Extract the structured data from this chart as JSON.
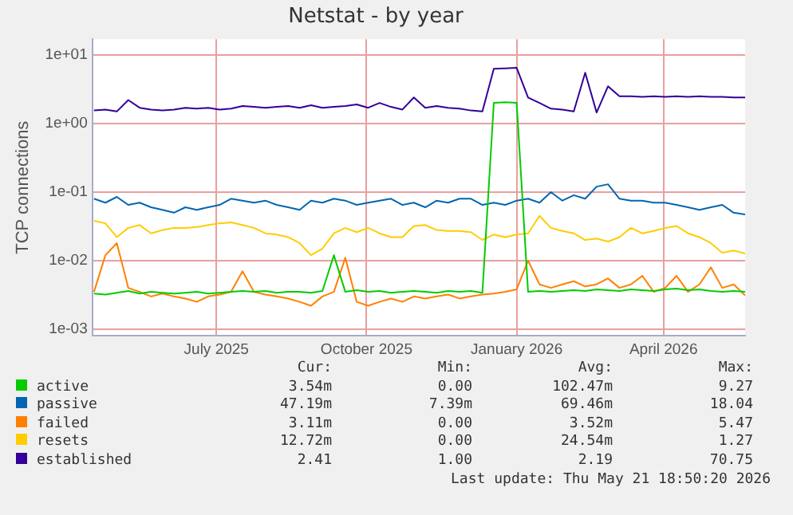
{
  "chart_data": {
    "type": "line",
    "title": "Netstat - by year",
    "ylabel": "TCP connections",
    "log": true,
    "grid": true,
    "legend": "bottom",
    "marker": "none",
    "line_style": "solid",
    "ylim": [
      0.0008,
      17
    ],
    "yticks": [
      {
        "value": 0.001,
        "label": "1e-03"
      },
      {
        "value": 0.01,
        "label": "1e-02"
      },
      {
        "value": 0.1,
        "label": "1e-01"
      },
      {
        "value": 1,
        "label": "1e+00"
      },
      {
        "value": 10,
        "label": "1e+01"
      }
    ],
    "xlim": [
      "2025-04-16",
      "2026-05-21"
    ],
    "xticks": [
      {
        "value": "2025-07-01",
        "label": "July 2025"
      },
      {
        "value": "2025-10-01",
        "label": "October 2025"
      },
      {
        "value": "2026-01-01",
        "label": "January 2026"
      },
      {
        "value": "2026-04-01",
        "label": "April 2026"
      }
    ],
    "x": [
      "2025-04-17",
      "2025-04-24",
      "2025-05-01",
      "2025-05-08",
      "2025-05-15",
      "2025-05-22",
      "2025-05-29",
      "2025-06-05",
      "2025-06-12",
      "2025-06-19",
      "2025-06-26",
      "2025-07-03",
      "2025-07-10",
      "2025-07-17",
      "2025-07-24",
      "2025-07-31",
      "2025-08-07",
      "2025-08-14",
      "2025-08-21",
      "2025-08-28",
      "2025-09-04",
      "2025-09-11",
      "2025-09-18",
      "2025-09-25",
      "2025-10-02",
      "2025-10-09",
      "2025-10-16",
      "2025-10-23",
      "2025-10-30",
      "2025-11-06",
      "2025-11-13",
      "2025-11-20",
      "2025-11-27",
      "2025-12-04",
      "2025-12-11",
      "2025-12-18",
      "2025-12-25",
      "2026-01-01",
      "2026-01-08",
      "2026-01-15",
      "2026-01-22",
      "2026-01-29",
      "2026-02-05",
      "2026-02-12",
      "2026-02-19",
      "2026-02-26",
      "2026-03-05",
      "2026-03-12",
      "2026-03-19",
      "2026-03-26",
      "2026-04-02",
      "2026-04-09",
      "2026-04-16",
      "2026-04-23",
      "2026-04-30",
      "2026-05-07",
      "2026-05-14",
      "2026-05-21"
    ],
    "series": [
      {
        "name": "active",
        "color": "#00cc00",
        "values": [
          0.0033,
          0.0032,
          0.0034,
          0.0036,
          0.0033,
          0.0035,
          0.0034,
          0.0033,
          0.0034,
          0.0035,
          0.0033,
          0.0034,
          0.0035,
          0.0036,
          0.0035,
          0.0036,
          0.0034,
          0.0035,
          0.0035,
          0.0034,
          0.0036,
          0.012,
          0.0035,
          0.0037,
          0.0035,
          0.0036,
          0.0034,
          0.0035,
          0.0036,
          0.0035,
          0.0034,
          0.0036,
          0.0035,
          0.0036,
          0.0034,
          2.0,
          2.05,
          2.0,
          0.0035,
          0.0036,
          0.0035,
          0.0036,
          0.0037,
          0.0036,
          0.0038,
          0.0037,
          0.0036,
          0.0038,
          0.0037,
          0.0036,
          0.0038,
          0.0039,
          0.0037,
          0.0038,
          0.0036,
          0.0035,
          0.0036,
          0.0035
        ]
      },
      {
        "name": "passive",
        "color": "#0066b3",
        "values": [
          0.08,
          0.07,
          0.085,
          0.065,
          0.07,
          0.06,
          0.055,
          0.05,
          0.06,
          0.055,
          0.06,
          0.065,
          0.08,
          0.075,
          0.07,
          0.075,
          0.065,
          0.06,
          0.055,
          0.075,
          0.07,
          0.08,
          0.075,
          0.065,
          0.07,
          0.075,
          0.08,
          0.065,
          0.07,
          0.06,
          0.075,
          0.07,
          0.08,
          0.08,
          0.065,
          0.07,
          0.065,
          0.075,
          0.08,
          0.07,
          0.1,
          0.075,
          0.09,
          0.08,
          0.12,
          0.13,
          0.08,
          0.075,
          0.075,
          0.07,
          0.07,
          0.065,
          0.06,
          0.055,
          0.06,
          0.065,
          0.05,
          0.047
        ]
      },
      {
        "name": "failed",
        "color": "#ff8000",
        "values": [
          0.0035,
          0.012,
          0.018,
          0.004,
          0.0035,
          0.003,
          0.0033,
          0.003,
          0.0028,
          0.0025,
          0.003,
          0.0032,
          0.0035,
          0.007,
          0.0035,
          0.0032,
          0.003,
          0.0028,
          0.0025,
          0.0022,
          0.003,
          0.0035,
          0.011,
          0.0025,
          0.0022,
          0.0025,
          0.0028,
          0.0025,
          0.003,
          0.0028,
          0.003,
          0.0032,
          0.0028,
          0.003,
          0.0032,
          0.0033,
          0.0035,
          0.0038,
          0.01,
          0.0045,
          0.004,
          0.0045,
          0.005,
          0.0042,
          0.0045,
          0.0055,
          0.004,
          0.0045,
          0.006,
          0.0035,
          0.004,
          0.006,
          0.0035,
          0.0045,
          0.008,
          0.004,
          0.0045,
          0.0031
        ]
      },
      {
        "name": "resets",
        "color": "#ffcc00",
        "values": [
          0.038,
          0.035,
          0.022,
          0.03,
          0.033,
          0.025,
          0.028,
          0.03,
          0.03,
          0.031,
          0.033,
          0.035,
          0.036,
          0.033,
          0.03,
          0.025,
          0.024,
          0.022,
          0.018,
          0.012,
          0.015,
          0.025,
          0.03,
          0.026,
          0.03,
          0.025,
          0.022,
          0.022,
          0.032,
          0.033,
          0.028,
          0.027,
          0.027,
          0.026,
          0.02,
          0.024,
          0.022,
          0.024,
          0.025,
          0.045,
          0.03,
          0.027,
          0.025,
          0.02,
          0.021,
          0.019,
          0.022,
          0.03,
          0.025,
          0.027,
          0.03,
          0.032,
          0.025,
          0.022,
          0.018,
          0.013,
          0.014,
          0.0127
        ]
      },
      {
        "name": "established",
        "color": "#330099",
        "values": [
          1.55,
          1.6,
          1.5,
          2.2,
          1.7,
          1.6,
          1.55,
          1.6,
          1.7,
          1.65,
          1.7,
          1.6,
          1.65,
          1.8,
          1.75,
          1.7,
          1.75,
          1.8,
          1.7,
          1.85,
          1.7,
          1.75,
          1.8,
          1.9,
          1.7,
          2.0,
          1.75,
          1.6,
          2.4,
          1.7,
          1.8,
          1.7,
          1.65,
          1.55,
          1.5,
          6.3,
          6.4,
          6.5,
          2.4,
          2.0,
          1.65,
          1.6,
          1.5,
          5.5,
          1.45,
          3.5,
          2.5,
          2.5,
          2.45,
          2.5,
          2.45,
          2.5,
          2.45,
          2.5,
          2.45,
          2.45,
          2.4,
          2.41
        ]
      }
    ],
    "annotations": [
      "Cur:",
      "Min:",
      "Avg:",
      "Max:",
      "3.54m",
      "0.00",
      "102.47m",
      "9.27",
      "47.19m",
      "7.39m",
      "69.46m",
      "18.04",
      "3.11m",
      "0.00",
      "3.52m",
      "5.47",
      "12.72m",
      "0.00",
      "24.54m",
      "1.27",
      "2.41",
      "1.00",
      "2.19",
      "70.75",
      "Last update: Thu May 21 18:50:20 2026"
    ]
  }
}
